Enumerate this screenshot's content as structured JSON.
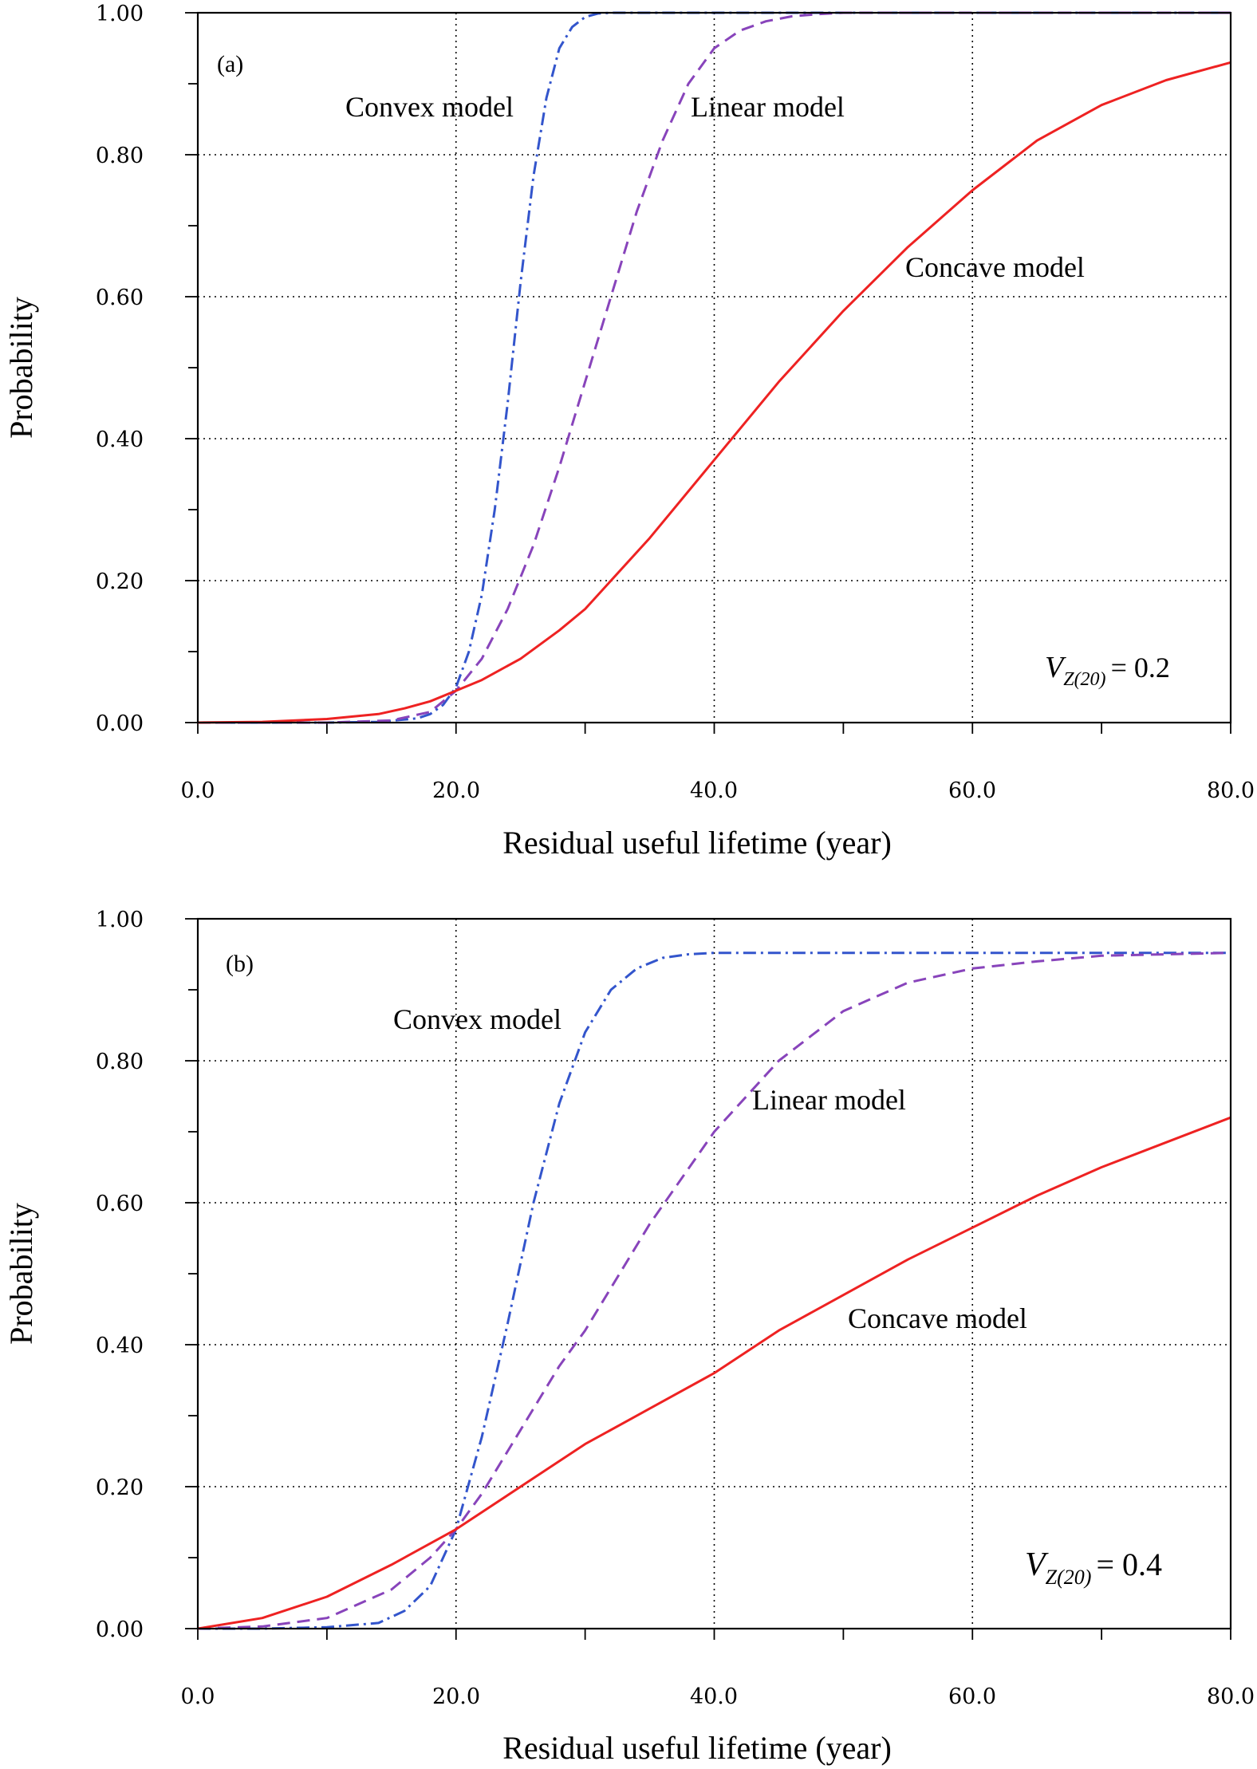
{
  "chart_data": [
    {
      "type": "line",
      "panel_label": "(a)",
      "xlabel": "Residual useful lifetime (year)",
      "ylabel": "Probability",
      "xlim": [
        0,
        80
      ],
      "ylim": [
        0,
        1
      ],
      "x_ticks": [
        "0.0",
        "20.0",
        "40.0",
        "60.0",
        "80.0"
      ],
      "y_ticks": [
        "0.00",
        "0.20",
        "0.40",
        "0.60",
        "0.80",
        "1.00"
      ],
      "grid": true,
      "annotation": {
        "var": "V",
        "sub": "Z(20)",
        "value": "= 0.2"
      },
      "series": [
        {
          "name": "Convex model",
          "color": "#3355cc",
          "style": "dashdot",
          "x": [
            0,
            10,
            14,
            17,
            18,
            19,
            20,
            21,
            22,
            23,
            24,
            25,
            26,
            27,
            28,
            29,
            30,
            31,
            32,
            35,
            40,
            60,
            80
          ],
          "y": [
            0,
            0,
            0.001,
            0.006,
            0.012,
            0.025,
            0.05,
            0.1,
            0.18,
            0.3,
            0.45,
            0.62,
            0.77,
            0.88,
            0.95,
            0.98,
            0.994,
            0.999,
            1.0,
            1.0,
            1.0,
            1.0,
            1.0
          ]
        },
        {
          "name": "Linear model",
          "color": "#8844bb",
          "style": "dashed",
          "x": [
            0,
            10,
            15,
            18,
            20,
            22,
            24,
            26,
            28,
            30,
            32,
            34,
            36,
            38,
            40,
            42,
            44,
            46,
            48,
            50,
            55,
            60,
            80
          ],
          "y": [
            0,
            0,
            0.003,
            0.015,
            0.045,
            0.09,
            0.16,
            0.25,
            0.36,
            0.48,
            0.6,
            0.72,
            0.82,
            0.9,
            0.95,
            0.975,
            0.988,
            0.995,
            0.998,
            1.0,
            1.0,
            1.0,
            1.0
          ]
        },
        {
          "name": "Concave model",
          "color": "#ee2222",
          "style": "solid",
          "x": [
            0,
            5,
            10,
            14,
            16,
            18,
            20,
            22,
            25,
            28,
            30,
            35,
            40,
            45,
            50,
            55,
            60,
            65,
            70,
            75,
            80
          ],
          "y": [
            0,
            0.001,
            0.005,
            0.012,
            0.02,
            0.03,
            0.045,
            0.06,
            0.09,
            0.13,
            0.16,
            0.26,
            0.37,
            0.48,
            0.58,
            0.67,
            0.75,
            0.82,
            0.87,
            0.905,
            0.93
          ]
        }
      ]
    },
    {
      "type": "line",
      "panel_label": "(b)",
      "xlabel": "Residual useful lifetime (year)",
      "ylabel": "Probability",
      "xlim": [
        0,
        80
      ],
      "ylim": [
        0,
        1
      ],
      "x_ticks": [
        "0.0",
        "20.0",
        "40.0",
        "60.0",
        "80.0"
      ],
      "y_ticks": [
        "0.00",
        "0.20",
        "0.40",
        "0.60",
        "0.80",
        "1.00"
      ],
      "grid": true,
      "annotation": {
        "var": "V",
        "sub": "Z(20)",
        "value": "= 0.4"
      },
      "series": [
        {
          "name": "Convex model",
          "color": "#3355cc",
          "style": "dashdot",
          "x": [
            0,
            5,
            10,
            14,
            16,
            18,
            20,
            22,
            24,
            26,
            28,
            30,
            32,
            34,
            36,
            38,
            40,
            50,
            60,
            80
          ],
          "y": [
            0,
            0,
            0.002,
            0.008,
            0.025,
            0.06,
            0.14,
            0.27,
            0.43,
            0.6,
            0.74,
            0.84,
            0.9,
            0.93,
            0.945,
            0.95,
            0.952,
            0.952,
            0.952,
            0.952
          ]
        },
        {
          "name": "Linear model",
          "color": "#8844bb",
          "style": "dashed",
          "x": [
            0,
            5,
            10,
            15,
            18,
            20,
            22,
            25,
            28,
            30,
            35,
            40,
            45,
            50,
            55,
            60,
            65,
            70,
            80
          ],
          "y": [
            0,
            0.003,
            0.015,
            0.055,
            0.1,
            0.14,
            0.19,
            0.28,
            0.37,
            0.42,
            0.57,
            0.7,
            0.8,
            0.87,
            0.91,
            0.93,
            0.94,
            0.948,
            0.952
          ]
        },
        {
          "name": "Concave model",
          "color": "#ee2222",
          "style": "solid",
          "x": [
            0,
            5,
            10,
            15,
            20,
            25,
            30,
            35,
            40,
            45,
            50,
            55,
            60,
            65,
            70,
            75,
            80
          ],
          "y": [
            0,
            0.015,
            0.045,
            0.09,
            0.14,
            0.2,
            0.26,
            0.31,
            0.36,
            0.42,
            0.47,
            0.52,
            0.565,
            0.61,
            0.65,
            0.685,
            0.72
          ]
        }
      ]
    }
  ]
}
